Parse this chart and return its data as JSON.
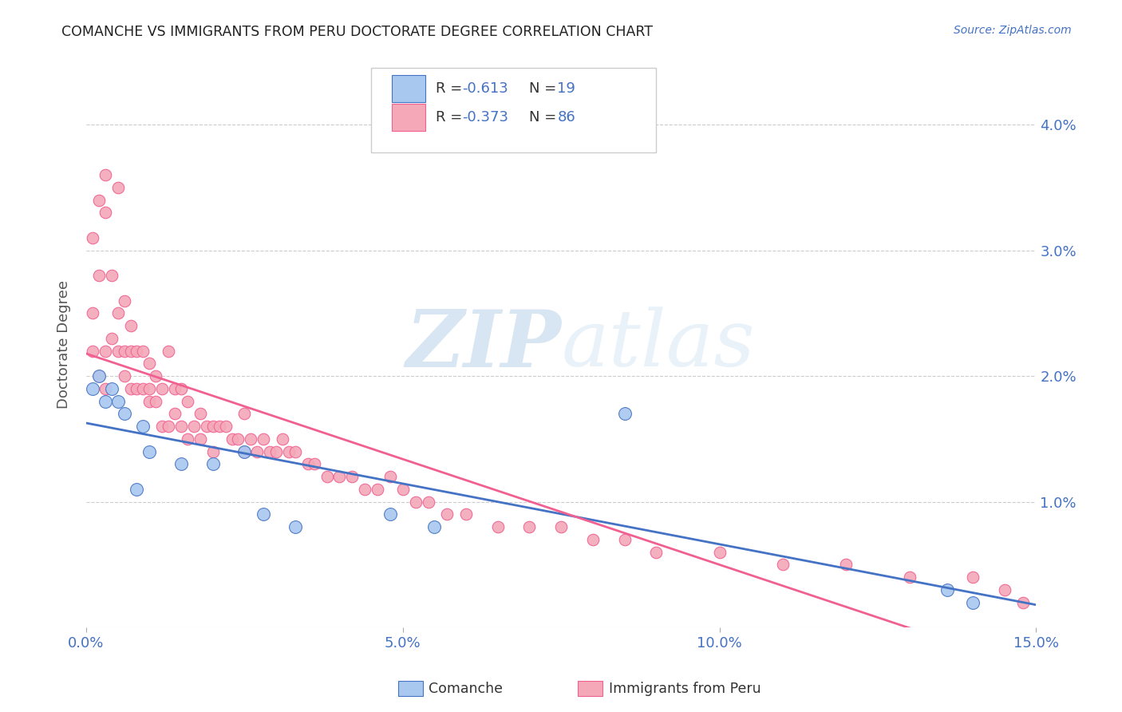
{
  "title": "COMANCHE VS IMMIGRANTS FROM PERU DOCTORATE DEGREE CORRELATION CHART",
  "source": "Source: ZipAtlas.com",
  "ylabel_label": "Doctorate Degree",
  "xlim": [
    0.0,
    0.15
  ],
  "ylim": [
    0.0,
    0.045
  ],
  "xticks": [
    0.0,
    0.05,
    0.1,
    0.15
  ],
  "xtick_labels": [
    "0.0%",
    "5.0%",
    "10.0%",
    "15.0%"
  ],
  "yticks": [
    0.0,
    0.01,
    0.02,
    0.03,
    0.04
  ],
  "right_ytick_labels": [
    "",
    "1.0%",
    "2.0%",
    "3.0%",
    "4.0%"
  ],
  "comanche_R": -0.613,
  "comanche_N": 19,
  "peru_R": -0.373,
  "peru_N": 86,
  "comanche_color": "#a8c8f0",
  "peru_color": "#f4a8b8",
  "comanche_line_color": "#4472c4",
  "peru_line_color": "#f06090",
  "background_color": "#ffffff",
  "grid_color": "#cccccc",
  "comanche_x": [
    0.001,
    0.002,
    0.003,
    0.004,
    0.005,
    0.006,
    0.008,
    0.009,
    0.01,
    0.015,
    0.02,
    0.025,
    0.028,
    0.033,
    0.048,
    0.055,
    0.085,
    0.136,
    0.14
  ],
  "comanche_y": [
    0.019,
    0.02,
    0.018,
    0.019,
    0.018,
    0.017,
    0.011,
    0.016,
    0.014,
    0.013,
    0.013,
    0.014,
    0.009,
    0.008,
    0.009,
    0.008,
    0.017,
    0.003,
    0.002
  ],
  "peru_x": [
    0.001,
    0.001,
    0.002,
    0.002,
    0.003,
    0.003,
    0.003,
    0.004,
    0.004,
    0.005,
    0.005,
    0.005,
    0.006,
    0.006,
    0.006,
    0.007,
    0.007,
    0.007,
    0.008,
    0.008,
    0.009,
    0.009,
    0.01,
    0.01,
    0.01,
    0.011,
    0.011,
    0.012,
    0.012,
    0.013,
    0.013,
    0.014,
    0.014,
    0.015,
    0.015,
    0.016,
    0.016,
    0.017,
    0.018,
    0.018,
    0.019,
    0.02,
    0.02,
    0.021,
    0.022,
    0.023,
    0.024,
    0.025,
    0.025,
    0.026,
    0.027,
    0.028,
    0.029,
    0.03,
    0.031,
    0.032,
    0.033,
    0.035,
    0.036,
    0.038,
    0.04,
    0.042,
    0.044,
    0.046,
    0.048,
    0.05,
    0.052,
    0.054,
    0.057,
    0.06,
    0.065,
    0.07,
    0.075,
    0.08,
    0.085,
    0.09,
    0.1,
    0.11,
    0.12,
    0.13,
    0.14,
    0.145,
    0.148,
    0.001,
    0.002,
    0.003
  ],
  "peru_y": [
    0.031,
    0.025,
    0.034,
    0.028,
    0.036,
    0.033,
    0.022,
    0.028,
    0.023,
    0.035,
    0.025,
    0.022,
    0.026,
    0.022,
    0.02,
    0.024,
    0.022,
    0.019,
    0.022,
    0.019,
    0.022,
    0.019,
    0.021,
    0.019,
    0.018,
    0.02,
    0.018,
    0.019,
    0.016,
    0.022,
    0.016,
    0.019,
    0.017,
    0.019,
    0.016,
    0.018,
    0.015,
    0.016,
    0.017,
    0.015,
    0.016,
    0.016,
    0.014,
    0.016,
    0.016,
    0.015,
    0.015,
    0.017,
    0.014,
    0.015,
    0.014,
    0.015,
    0.014,
    0.014,
    0.015,
    0.014,
    0.014,
    0.013,
    0.013,
    0.012,
    0.012,
    0.012,
    0.011,
    0.011,
    0.012,
    0.011,
    0.01,
    0.01,
    0.009,
    0.009,
    0.008,
    0.008,
    0.008,
    0.007,
    0.007,
    0.006,
    0.006,
    0.005,
    0.005,
    0.004,
    0.004,
    0.003,
    0.002,
    0.022,
    0.02,
    0.019
  ]
}
